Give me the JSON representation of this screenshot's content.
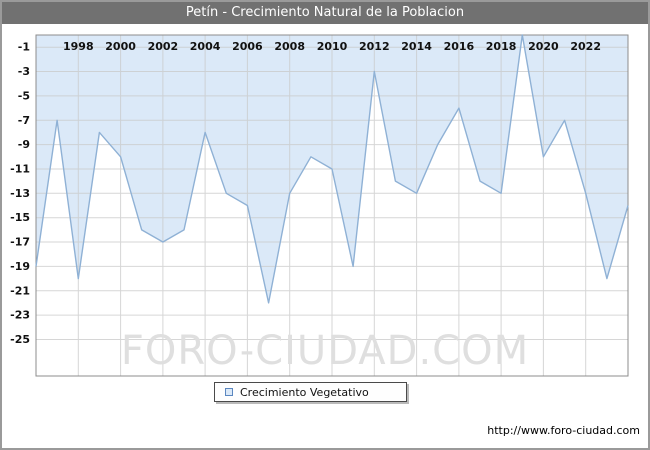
{
  "title_bar": {
    "bg": "#717171",
    "fg": "#ffffff"
  },
  "chart_data": {
    "type": "area",
    "title": "Petín - Crecimiento Natural de la Poblacion",
    "xlabel": "",
    "ylabel": "",
    "x": [
      1996,
      1997,
      1998,
      1999,
      2000,
      2001,
      2002,
      2003,
      2004,
      2005,
      2006,
      2007,
      2008,
      2009,
      2010,
      2011,
      2012,
      2013,
      2014,
      2015,
      2016,
      2017,
      2018,
      2019,
      2020,
      2021,
      2022,
      2023,
      2024
    ],
    "series": [
      {
        "name": "Crecimiento Vegetativo",
        "values": [
          -19,
          -7,
          -20,
          -8,
          -10,
          -16,
          -17,
          -16,
          -8,
          -13,
          -14,
          -22,
          -13,
          -10,
          -11,
          -19,
          -3,
          -12,
          -13,
          -9,
          -6,
          -12,
          -13,
          0,
          -10,
          -7,
          -13,
          -20,
          -14
        ]
      }
    ],
    "baseline": 0,
    "ylim": [
      -28,
      0
    ],
    "yticks": [
      -1,
      -3,
      -5,
      -7,
      -9,
      -11,
      -13,
      -15,
      -17,
      -19,
      -21,
      -23,
      -25
    ],
    "xticks": [
      1998,
      2000,
      2002,
      2004,
      2006,
      2008,
      2010,
      2012,
      2014,
      2016,
      2018,
      2020,
      2022
    ],
    "grid": true,
    "legend_position": "bottom-center",
    "area_fill": "#dbe9f8",
    "line_color": "#8fb1d5",
    "grid_color": "#c9c9c9",
    "frame_color": "#8c8c8c",
    "tick_label_color": "#111111"
  },
  "legend": {
    "label": "Crecimiento Vegetativo",
    "swatch_fill": "#dbe9f8",
    "swatch_border": "#5b87c0"
  },
  "watermark": {
    "text": "FORO-CIUDAD.COM"
  },
  "footer": {
    "url": "http://www.foro-ciudad.com"
  }
}
